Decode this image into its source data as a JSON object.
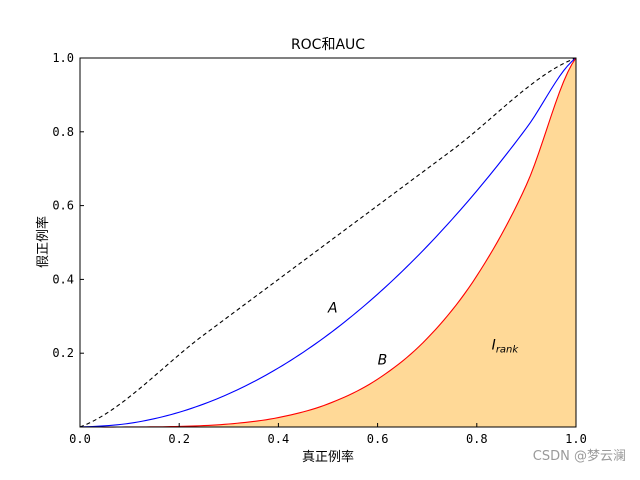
{
  "chart_data": {
    "type": "area",
    "title": "ROC和AUC",
    "xlabel": "真正例率",
    "ylabel": "假正例率",
    "xlim": [
      0,
      1
    ],
    "ylim": [
      0,
      1
    ],
    "xticks": [
      "0.0",
      "0.2",
      "0.4",
      "0.6",
      "0.8",
      "1.0"
    ],
    "yticks": [
      "0.2",
      "0.4",
      "0.6",
      "0.8",
      "1.0"
    ],
    "grid": false,
    "series": [
      {
        "style": "dashed",
        "color": "#000000",
        "x": [
          0.0,
          0.25,
          0.5,
          0.75,
          1.0
        ],
        "y": [
          0.0,
          0.25,
          0.5,
          0.75,
          1.0
        ]
      },
      {
        "style": "solid",
        "color": "#0000ff",
        "x": [
          0.0,
          0.1,
          0.2,
          0.3,
          0.4,
          0.5,
          0.6,
          0.7,
          0.8,
          0.9,
          1.0
        ],
        "y": [
          0.0,
          0.01,
          0.04,
          0.09,
          0.16,
          0.25,
          0.36,
          0.49,
          0.64,
          0.81,
          1.0
        ]
      },
      {
        "style": "solid",
        "color": "#ff0000",
        "fill": "#ffd997",
        "x": [
          0.0,
          0.1,
          0.2,
          0.3,
          0.4,
          0.5,
          0.6,
          0.7,
          0.8,
          0.9,
          1.0
        ],
        "y": [
          0.0,
          0.0001,
          0.0016,
          0.0081,
          0.0256,
          0.0625,
          0.1296,
          0.2401,
          0.4096,
          0.6561,
          1.0
        ]
      }
    ],
    "annotations": [
      {
        "text": "A",
        "x": 0.5,
        "y": 0.31
      },
      {
        "text": "B",
        "x": 0.6,
        "y": 0.17
      },
      {
        "text": "I",
        "sub": "rank",
        "x": 0.83,
        "y": 0.21
      }
    ]
  },
  "watermark": "CSDN @梦云澜"
}
